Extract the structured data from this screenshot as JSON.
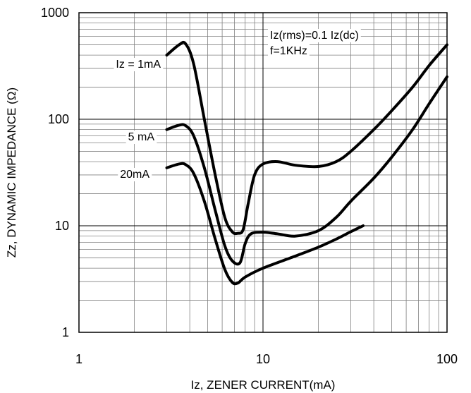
{
  "chart_data": {
    "type": "line",
    "title": "",
    "xlabel": "Iz, ZENER CURRENT(mA)",
    "ylabel": "Zz, DYNAMIC IMPEDANCE (Ω)",
    "x_scale": "log",
    "y_scale": "log",
    "xlim": [
      1,
      100
    ],
    "ylim": [
      1,
      1000
    ],
    "x_ticks": [
      1,
      10,
      100
    ],
    "x_tick_labels": [
      "1",
      "10",
      "100"
    ],
    "y_ticks": [
      1,
      10,
      100,
      1000
    ],
    "y_tick_labels": [
      "1",
      "10",
      "100",
      "1000"
    ],
    "grid": true,
    "annotations": [
      "Iz(rms)=0.1 Iz(dc)",
      "f=1KHz"
    ],
    "series": [
      {
        "name": "Iz = 1mA",
        "points": [
          [
            3.0,
            400
          ],
          [
            3.5,
            500
          ],
          [
            3.8,
            510
          ],
          [
            4.2,
            330
          ],
          [
            4.8,
            100
          ],
          [
            5.5,
            30
          ],
          [
            6.2,
            12
          ],
          [
            6.8,
            8.8
          ],
          [
            7.3,
            8.5
          ],
          [
            7.8,
            9.2
          ],
          [
            8.3,
            16
          ],
          [
            9.0,
            30
          ],
          [
            10,
            38
          ],
          [
            12,
            40
          ],
          [
            15,
            37
          ],
          [
            20,
            36
          ],
          [
            25,
            40
          ],
          [
            30,
            50
          ],
          [
            40,
            80
          ],
          [
            50,
            120
          ],
          [
            65,
            200
          ],
          [
            80,
            320
          ],
          [
            100,
            500
          ]
        ]
      },
      {
        "name": "5 mA",
        "points": [
          [
            3.0,
            80
          ],
          [
            3.5,
            88
          ],
          [
            3.8,
            87
          ],
          [
            4.2,
            70
          ],
          [
            4.8,
            35
          ],
          [
            5.5,
            14
          ],
          [
            6.2,
            6.5
          ],
          [
            6.8,
            4.7
          ],
          [
            7.5,
            4.5
          ],
          [
            8.0,
            6.8
          ],
          [
            8.6,
            8.4
          ],
          [
            10,
            8.7
          ],
          [
            12,
            8.4
          ],
          [
            15,
            8.0
          ],
          [
            20,
            9.0
          ],
          [
            25,
            12
          ],
          [
            30,
            17
          ],
          [
            40,
            28
          ],
          [
            50,
            44
          ],
          [
            65,
            80
          ],
          [
            80,
            140
          ],
          [
            100,
            250
          ]
        ]
      },
      {
        "name": "20mA",
        "points": [
          [
            3.0,
            35
          ],
          [
            3.5,
            38
          ],
          [
            3.8,
            37.5
          ],
          [
            4.2,
            31
          ],
          [
            4.8,
            17
          ],
          [
            5.5,
            7.5
          ],
          [
            6.2,
            3.9
          ],
          [
            6.8,
            2.95
          ],
          [
            7.3,
            2.9
          ],
          [
            8.0,
            3.3
          ],
          [
            10,
            4.0
          ],
          [
            15,
            5.2
          ],
          [
            20,
            6.3
          ],
          [
            25,
            7.5
          ],
          [
            30,
            8.8
          ],
          [
            35,
            10
          ]
        ]
      }
    ],
    "colors": {
      "line": "#000000",
      "grid": "#808080",
      "background": "#ffffff"
    }
  }
}
